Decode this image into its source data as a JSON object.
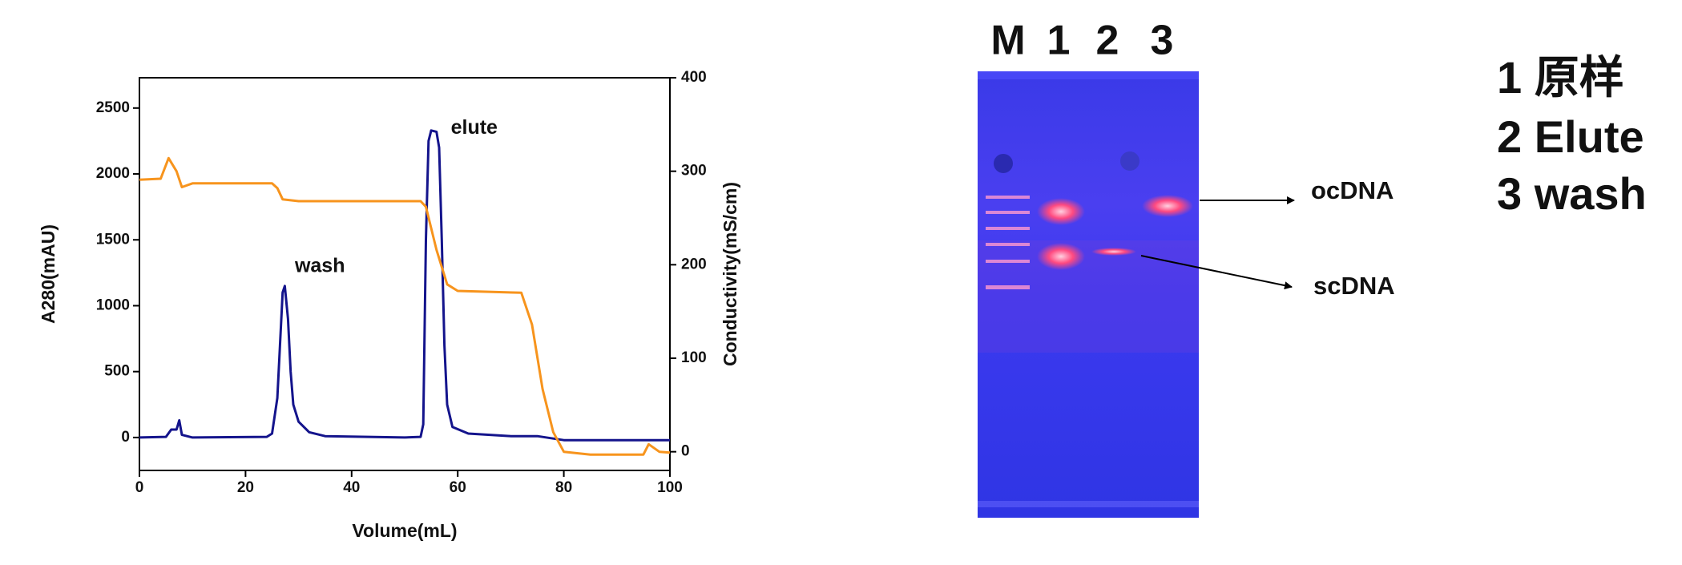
{
  "chart_data": {
    "type": "line",
    "xlabel": "Volume(mL)",
    "ylabel": "A280(mAU)",
    "y2label": "Conductivity(mS/cm)",
    "xlim": [
      0,
      100
    ],
    "xticks": [
      0,
      20,
      40,
      60,
      80,
      100
    ],
    "ylim": [
      -250,
      2730
    ],
    "yticks": [
      0,
      500,
      1000,
      1500,
      2000,
      2500
    ],
    "y2lim": [
      -20,
      400
    ],
    "y2ticks": [
      0,
      100,
      200,
      300,
      400
    ],
    "series": [
      {
        "color": "#14148c",
        "x": [
          0,
          5,
          6,
          7,
          7.5,
          8,
          10,
          24,
          25,
          26,
          26.5,
          27,
          27.4,
          28,
          28.5,
          29,
          30,
          32,
          35,
          50,
          53,
          53.5,
          54,
          54.5,
          55,
          56,
          56.5,
          57,
          57.5,
          58,
          59,
          62,
          70,
          75,
          80,
          100
        ],
        "values": [
          0,
          5,
          60,
          60,
          130,
          20,
          0,
          5,
          30,
          300,
          700,
          1100,
          1150,
          900,
          500,
          250,
          120,
          40,
          10,
          0,
          5,
          100,
          1500,
          2250,
          2330,
          2320,
          2200,
          1500,
          700,
          250,
          80,
          30,
          10,
          10,
          -20,
          -20
        ]
      },
      {
        "color": "#f7941d",
        "axis": "y2",
        "x": [
          0,
          4,
          5.5,
          7,
          8,
          10,
          25,
          26,
          27,
          30,
          53,
          54,
          56,
          58,
          60,
          72,
          74,
          76,
          78,
          80,
          85,
          95,
          96,
          98,
          100
        ],
        "values": [
          291,
          292,
          314,
          300,
          283,
          287,
          287,
          282,
          270,
          268,
          268,
          262,
          216,
          179,
          172,
          170,
          136,
          67,
          21,
          0,
          -3,
          -3,
          8,
          0,
          -1
        ]
      }
    ],
    "annotations": [
      {
        "text": "wash",
        "x": 29.3,
        "y": 1295
      },
      {
        "text": "elute",
        "x": 58.7,
        "y": 2345
      }
    ]
  },
  "gel": {
    "lanes": [
      "M",
      "1",
      "2",
      "3"
    ],
    "bands": [
      "ocDNA",
      "scDNA"
    ]
  },
  "legend": [
    "1 原样",
    "2 Elute",
    "3 wash"
  ]
}
